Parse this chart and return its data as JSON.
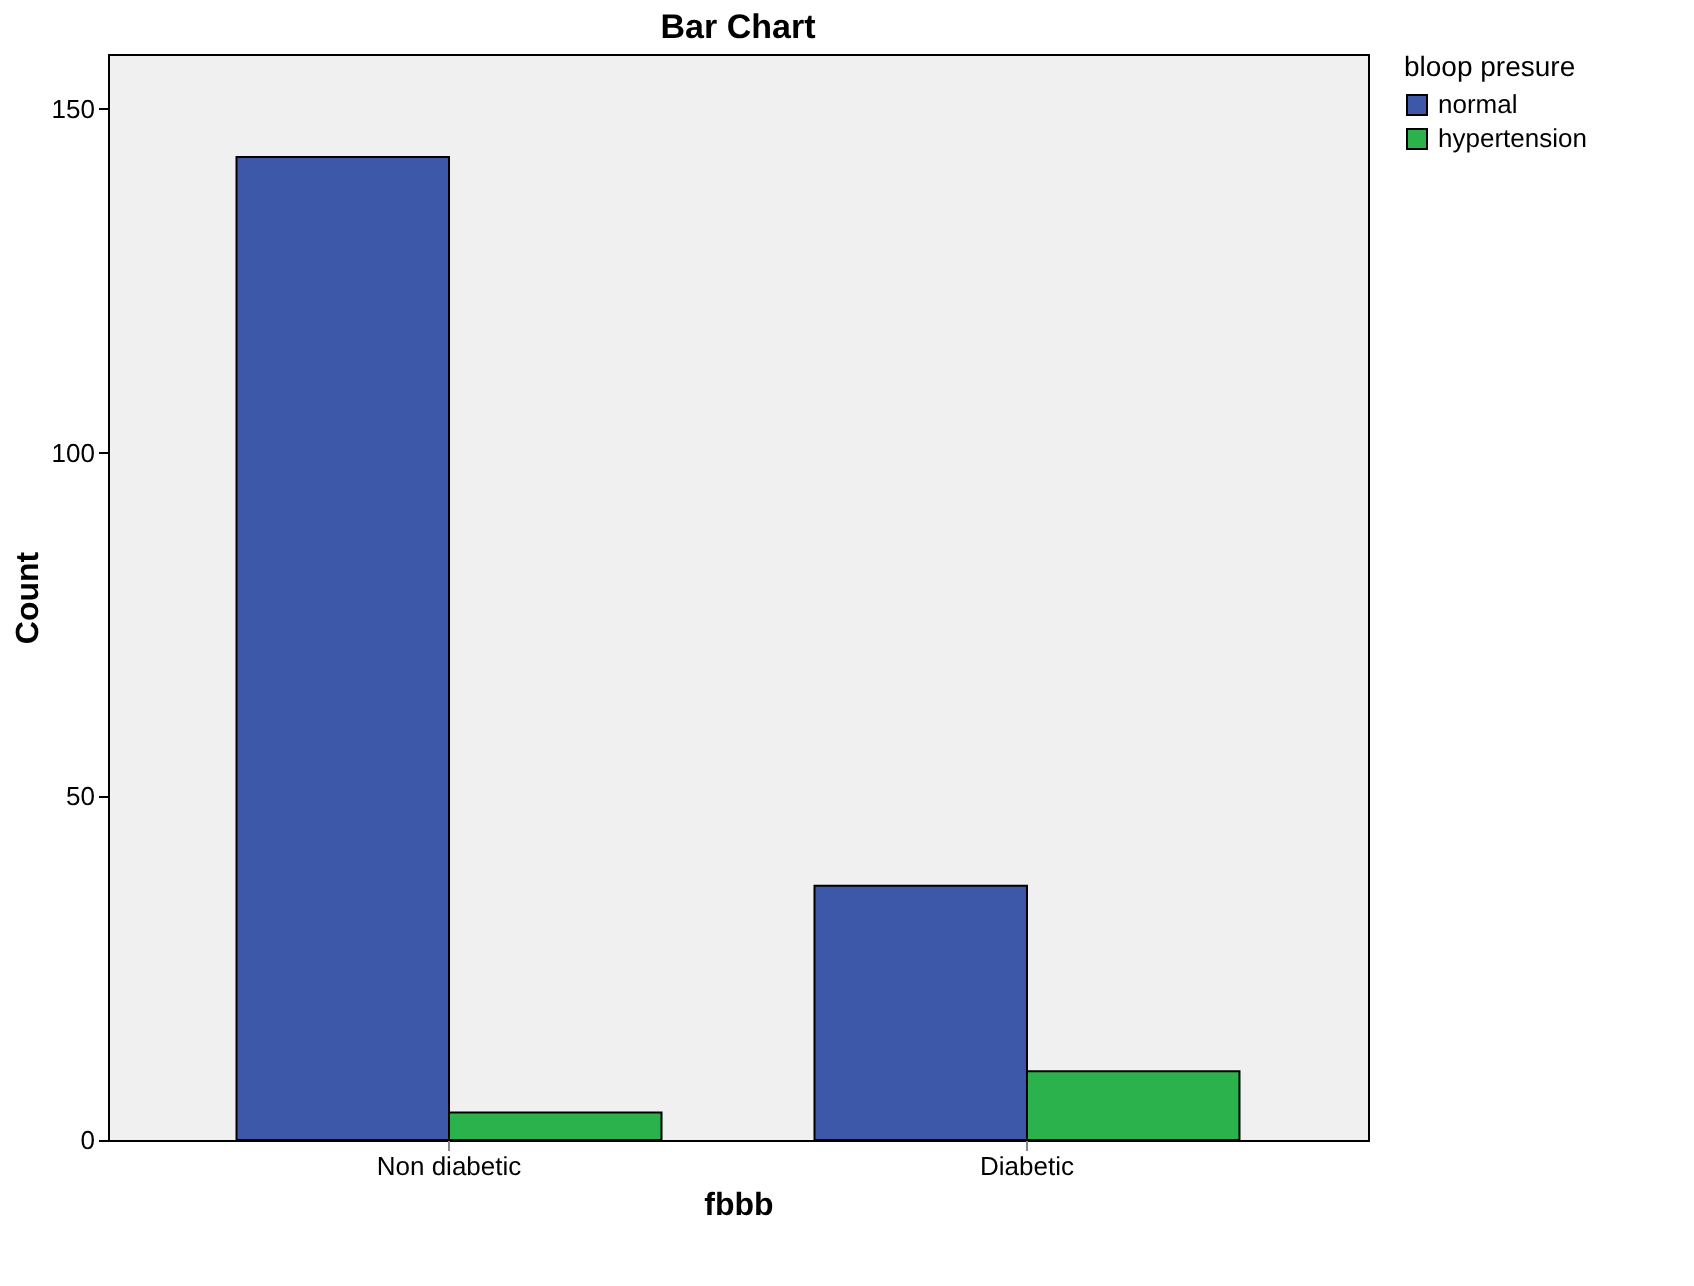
{
  "chart_data": {
    "type": "bar",
    "title": "Bar Chart",
    "xlabel": "fbbb",
    "ylabel": "Count",
    "legend_title": "bloop presure",
    "legend": "top right",
    "categories": [
      "Non diabetic",
      "Diabetic"
    ],
    "series": [
      {
        "name": "normal",
        "color": "#3d58a8",
        "values": [
          143,
          37
        ]
      },
      {
        "name": "hypertension",
        "color": "#2bb24c",
        "values": [
          4,
          10
        ]
      }
    ],
    "ylim": [
      0,
      158
    ],
    "yticks": [
      0,
      50,
      100,
      150
    ],
    "grid": false
  }
}
